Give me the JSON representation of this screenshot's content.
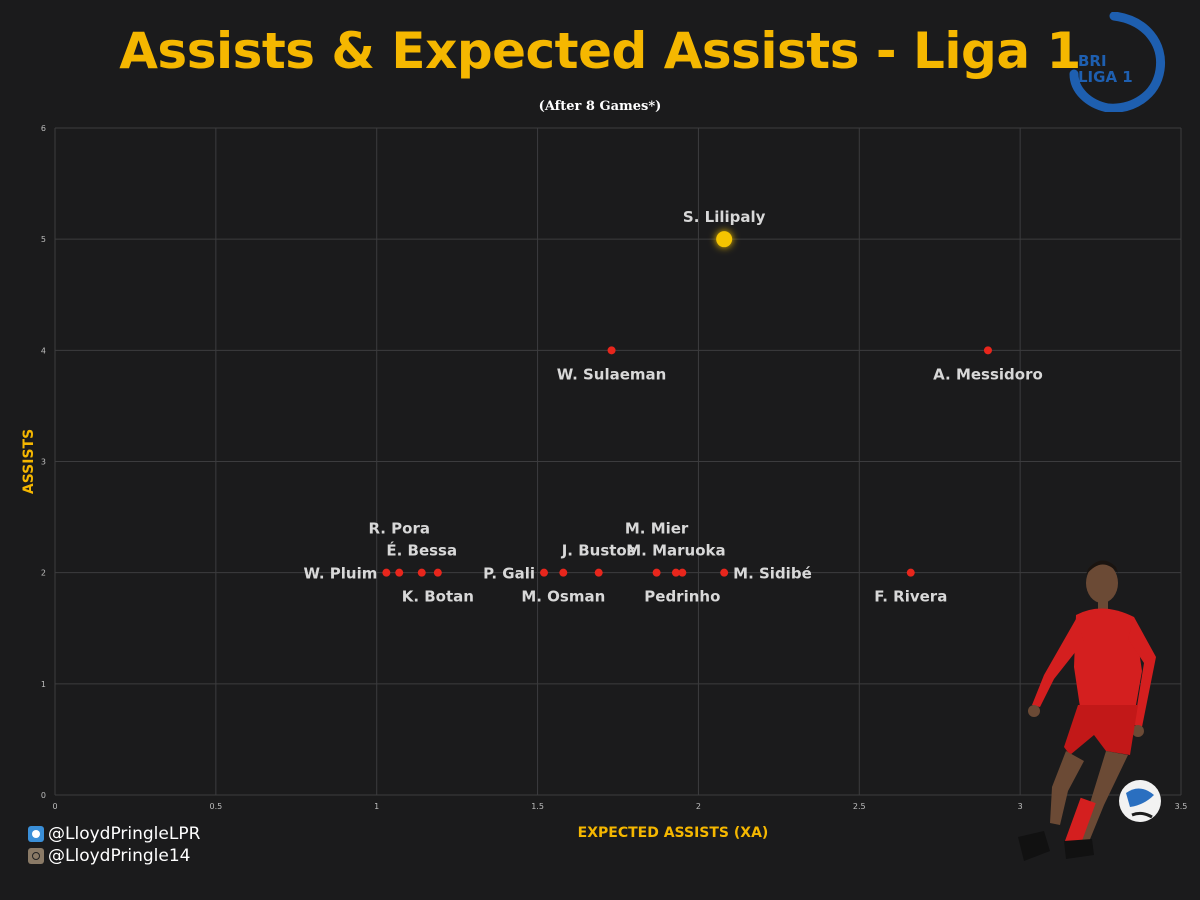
{
  "header": {
    "title": "Assists & Expected Assists - Liga 1",
    "subtitle": "(After 8 Games*)"
  },
  "logo": {
    "text_top": "BRI",
    "text_bottom": "LIGA 1"
  },
  "credits": {
    "twitter": "@LloydPringleLPR",
    "instagram": "@LloydPringle14"
  },
  "colors": {
    "background": "#1b1b1c",
    "accent": "#f5b700",
    "point": "#e8261c",
    "highlight": "#f5c400",
    "grid": "#3c3c3e",
    "label": "#d8d8d8"
  },
  "icons": [
    "twitter-icon",
    "instagram-icon",
    "liga-1-logo",
    "player-photo"
  ],
  "chart_data": {
    "type": "scatter",
    "title": "Assists & Expected Assists - Liga 1",
    "subtitle": "(After 8 Games*)",
    "xlabel": "EXPECTED ASSISTS (XA)",
    "ylabel": "ASSISTS",
    "xlim": [
      0,
      3.5
    ],
    "ylim": [
      0,
      6
    ],
    "xticks": [
      "0",
      "0.5",
      "1",
      "1.5",
      "2",
      "2.5",
      "3",
      "3.5"
    ],
    "yticks": [
      "0",
      "1",
      "2",
      "3",
      "4",
      "5",
      "6"
    ],
    "grid": true,
    "points": [
      {
        "name": "S. Lilipaly",
        "x": 2.08,
        "y": 5,
        "highlight": true,
        "label_pos": "above"
      },
      {
        "name": "W. Sulaeman",
        "x": 1.73,
        "y": 4,
        "label_pos": "below"
      },
      {
        "name": "A. Messidoro",
        "x": 2.9,
        "y": 4,
        "label_pos": "below"
      },
      {
        "name": "W. Pluim",
        "x": 1.03,
        "y": 2,
        "label_pos": "left"
      },
      {
        "name": "R. Pora",
        "x": 1.07,
        "y": 2,
        "label_pos": "above2"
      },
      {
        "name": "É. Bessa",
        "x": 1.14,
        "y": 2,
        "label_pos": "above"
      },
      {
        "name": "K. Botan",
        "x": 1.19,
        "y": 2,
        "label_pos": "below"
      },
      {
        "name": "P. Gali",
        "x": 1.52,
        "y": 2,
        "label_pos": "left"
      },
      {
        "name": "M. Osman",
        "x": 1.58,
        "y": 2,
        "label_pos": "below"
      },
      {
        "name": "J. Bustos",
        "x": 1.69,
        "y": 2,
        "label_pos": "above"
      },
      {
        "name": "M. Mier",
        "x": 1.87,
        "y": 2,
        "label_pos": "above2"
      },
      {
        "name": "M. Maruoka",
        "x": 1.93,
        "y": 2,
        "label_pos": "above"
      },
      {
        "name": "Pedrinho",
        "x": 1.95,
        "y": 2,
        "label_pos": "below"
      },
      {
        "name": "M. Sidibé",
        "x": 2.08,
        "y": 2,
        "label_pos": "right"
      },
      {
        "name": "F. Rivera",
        "x": 2.66,
        "y": 2,
        "label_pos": "below"
      }
    ]
  }
}
